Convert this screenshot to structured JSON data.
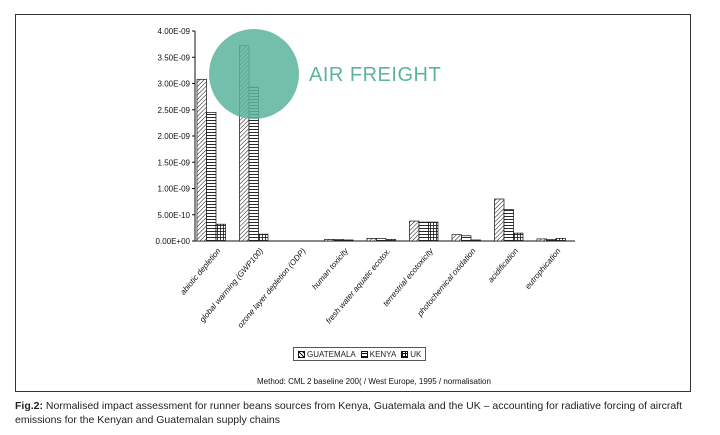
{
  "overlay": {
    "label": "AIR FREIGHT",
    "color": "#5cb49d"
  },
  "legend": {
    "guatemala": "GUATEMALA",
    "kenya": "KENYA",
    "uk": "UK"
  },
  "method_note": "Method: CML 2 baseline 200( / West Europe, 1995 / normalisation",
  "caption": {
    "prefix": "Fig.2:",
    "text": " Normalised impact assessment for runner beans sources from Kenya, Guatemala and the UK – accounting for radiative forcing of aircraft emissions for the Kenyan and Guatemalan supply chains"
  },
  "chart_data": {
    "type": "bar",
    "categories": [
      "abiotic depletion",
      "global warming (GWP100)",
      "ozone layer depletion (ODP)",
      "human toxicity",
      "fresh water aquatic ecotox.",
      "terrestrial ecotoxicity",
      "photochemical oxidation",
      "acidification",
      "eutrophication"
    ],
    "series": [
      {
        "name": "GUATEMALA",
        "values": [
          3.08e-09,
          3.72e-09,
          0,
          3e-11,
          5e-11,
          3.8e-10,
          1.2e-10,
          8e-10,
          4e-11
        ]
      },
      {
        "name": "KENYA",
        "values": [
          2.45e-09,
          2.93e-09,
          0,
          3e-11,
          5e-11,
          3.6e-10,
          1e-10,
          6e-10,
          3e-11
        ]
      },
      {
        "name": "UK",
        "values": [
          3.2e-10,
          1.3e-10,
          0,
          2e-11,
          3e-11,
          3.6e-10,
          2e-11,
          1.5e-10,
          5e-11
        ]
      }
    ],
    "ylim": [
      0,
      4e-09
    ],
    "yticks": [
      "0.00E+00",
      "5.00E-10",
      "1.00E-09",
      "1.50E-09",
      "2.00E-09",
      "2.50E-09",
      "3.00E-09",
      "3.50E-09",
      "4.00E-09"
    ],
    "ytick_values": [
      0,
      5e-10,
      1e-09,
      1.5e-09,
      2e-09,
      2.5e-09,
      3e-09,
      3.5e-09,
      4e-09
    ],
    "legend_position": "bottom",
    "grid": false
  }
}
